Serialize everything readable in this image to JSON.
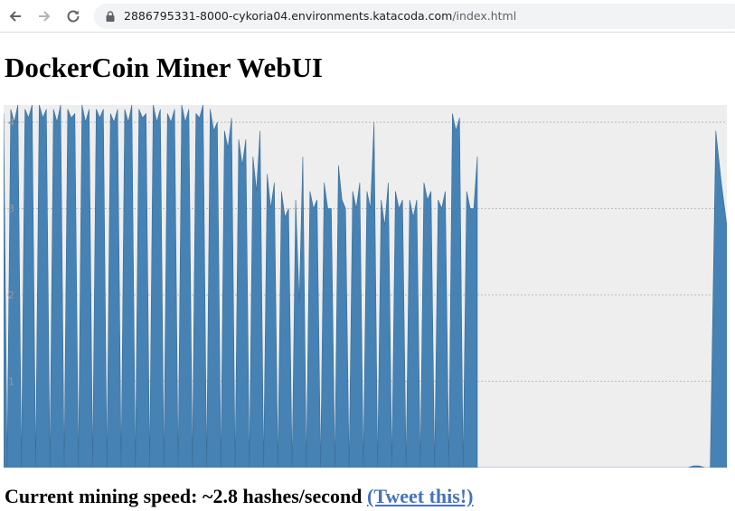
{
  "browser": {
    "back_icon": "arrow-left-icon",
    "forward_icon": "arrow-right-icon",
    "reload_icon": "reload-icon",
    "lock_icon": "lock-icon",
    "url_host": "2886795331-8000-cykoria04.environments.katacoda.com",
    "url_path": "/index.html"
  },
  "page": {
    "title": "DockerCoin Miner WebUI",
    "speed_prefix": "Current mining speed: ",
    "speed_value": "~2.8",
    "speed_suffix": " hashes/second ",
    "tweet_link": "(Tweet this!)"
  },
  "chart_data": {
    "type": "area",
    "title": "",
    "xlabel": "",
    "ylabel": "",
    "ylim": [
      0,
      4.2
    ],
    "yticks": [
      "1",
      "2",
      "3",
      "4"
    ],
    "grid": true,
    "colors": {
      "fill": "#4682b4",
      "background": "#eeeeee",
      "grid": "#bbbbbb"
    },
    "series": [
      {
        "values": [
          4.1,
          0.0,
          4.15,
          4.0,
          4.2,
          0.0,
          4.15,
          4.05,
          4.2,
          0.0,
          4.2,
          4.05,
          4.15,
          0.0,
          4.15,
          4.0,
          4.2,
          0.0,
          4.15,
          4.05,
          4.1,
          0.0,
          4.2,
          4.0,
          4.15,
          0.0,
          4.15,
          4.05,
          4.15,
          0.0,
          4.1,
          4.0,
          4.15,
          0.0,
          4.15,
          4.0,
          4.2,
          0.0,
          4.15,
          4.05,
          4.1,
          0.0,
          4.2,
          4.0,
          4.15,
          0.0,
          4.1,
          4.0,
          4.15,
          0.0,
          4.2,
          4.0,
          4.15,
          0.0,
          4.1,
          4.05,
          4.2,
          0.0,
          4.15,
          3.9,
          4.0,
          0.0,
          3.9,
          3.7,
          4.05,
          0.0,
          3.8,
          3.5,
          3.8,
          0.0,
          3.6,
          3.2,
          3.9,
          0.0,
          3.4,
          3.0,
          3.3,
          0.0,
          3.2,
          2.9,
          3.0,
          0.0,
          3.1,
          1.9,
          3.6,
          0.0,
          3.2,
          3.0,
          3.1,
          0.0,
          3.3,
          3.0,
          3.0,
          0.0,
          3.5,
          3.1,
          3.0,
          0.0,
          3.2,
          3.0,
          3.3,
          0.0,
          3.2,
          3.0,
          4.0,
          0.0,
          3.1,
          2.8,
          3.3,
          0.0,
          3.2,
          3.0,
          3.1,
          0.0,
          3.1,
          2.9,
          3.1,
          0.0,
          3.3,
          3.1,
          3.2,
          0.0,
          3.1,
          3.0,
          3.2,
          0.0,
          4.1,
          3.9,
          4.05,
          0.0,
          3.2,
          3.0,
          3.0,
          3.6
        ]
      },
      {
        "values": [
          0.0,
          0.0,
          0.0,
          0.0,
          0.0,
          0.0,
          0.0,
          0.0,
          0.0,
          0.0,
          0.0,
          0.0,
          0.0,
          0.0,
          0.0,
          0.0,
          0.0,
          0.0,
          0.0,
          0.0,
          0.0,
          0.0,
          0.0,
          0.0,
          0.0,
          0.0,
          0.0,
          0.0,
          0.0,
          0.0,
          0.0,
          0.0,
          0.0,
          0.0,
          0.0,
          0.0,
          0.0,
          0.0,
          0.0,
          0.02,
          0.02,
          0.0,
          0.0,
          3.9,
          3.3,
          2.8
        ]
      }
    ]
  }
}
